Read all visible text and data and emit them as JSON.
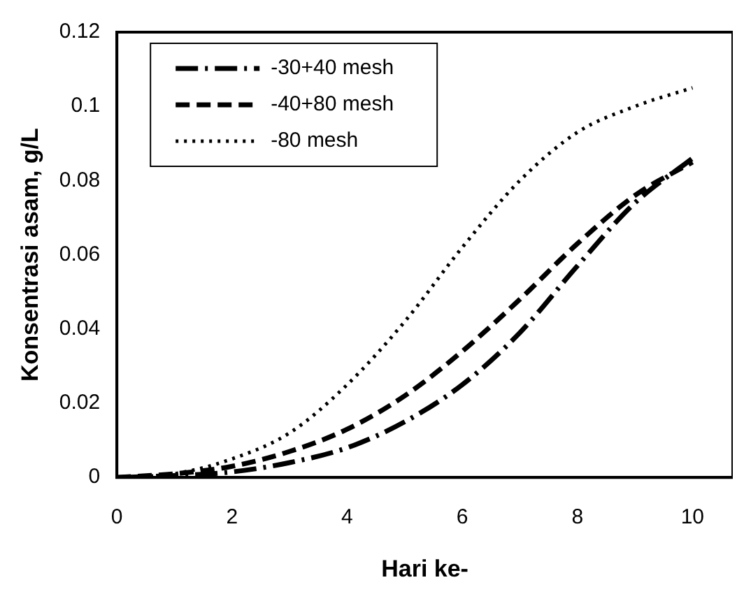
{
  "chart_data": {
    "type": "line",
    "xlabel": "Hari ke-",
    "ylabel": "Konsentrasi asam, g/L",
    "x": [
      0,
      1,
      2,
      3,
      4,
      5,
      6,
      7,
      8,
      9,
      10
    ],
    "series": [
      {
        "name": "-30+40 mesh",
        "color": "#000000",
        "line_style": "dashdot",
        "values": [
          0,
          0.0005,
          0.0015,
          0.004,
          0.008,
          0.015,
          0.025,
          0.039,
          0.057,
          0.074,
          0.086
        ]
      },
      {
        "name": "-40+80 mesh",
        "color": "#000000",
        "line_style": "dashed",
        "values": [
          0,
          0.001,
          0.003,
          0.007,
          0.013,
          0.022,
          0.034,
          0.048,
          0.063,
          0.076,
          0.085
        ]
      },
      {
        "name": "-80 mesh",
        "color": "#000000",
        "line_style": "dotted",
        "values": [
          0,
          0.001,
          0.005,
          0.012,
          0.025,
          0.042,
          0.062,
          0.08,
          0.093,
          0.1,
          0.105
        ]
      }
    ],
    "xlim": [
      0,
      10.7
    ],
    "xticks": [
      0,
      2,
      4,
      6,
      8,
      10
    ],
    "ylim": [
      0,
      0.12
    ],
    "yticks": [
      0,
      0.02,
      0.04,
      0.06,
      0.08,
      0.1,
      0.12
    ],
    "grid": false,
    "legend": "top left",
    "marker": "none"
  }
}
